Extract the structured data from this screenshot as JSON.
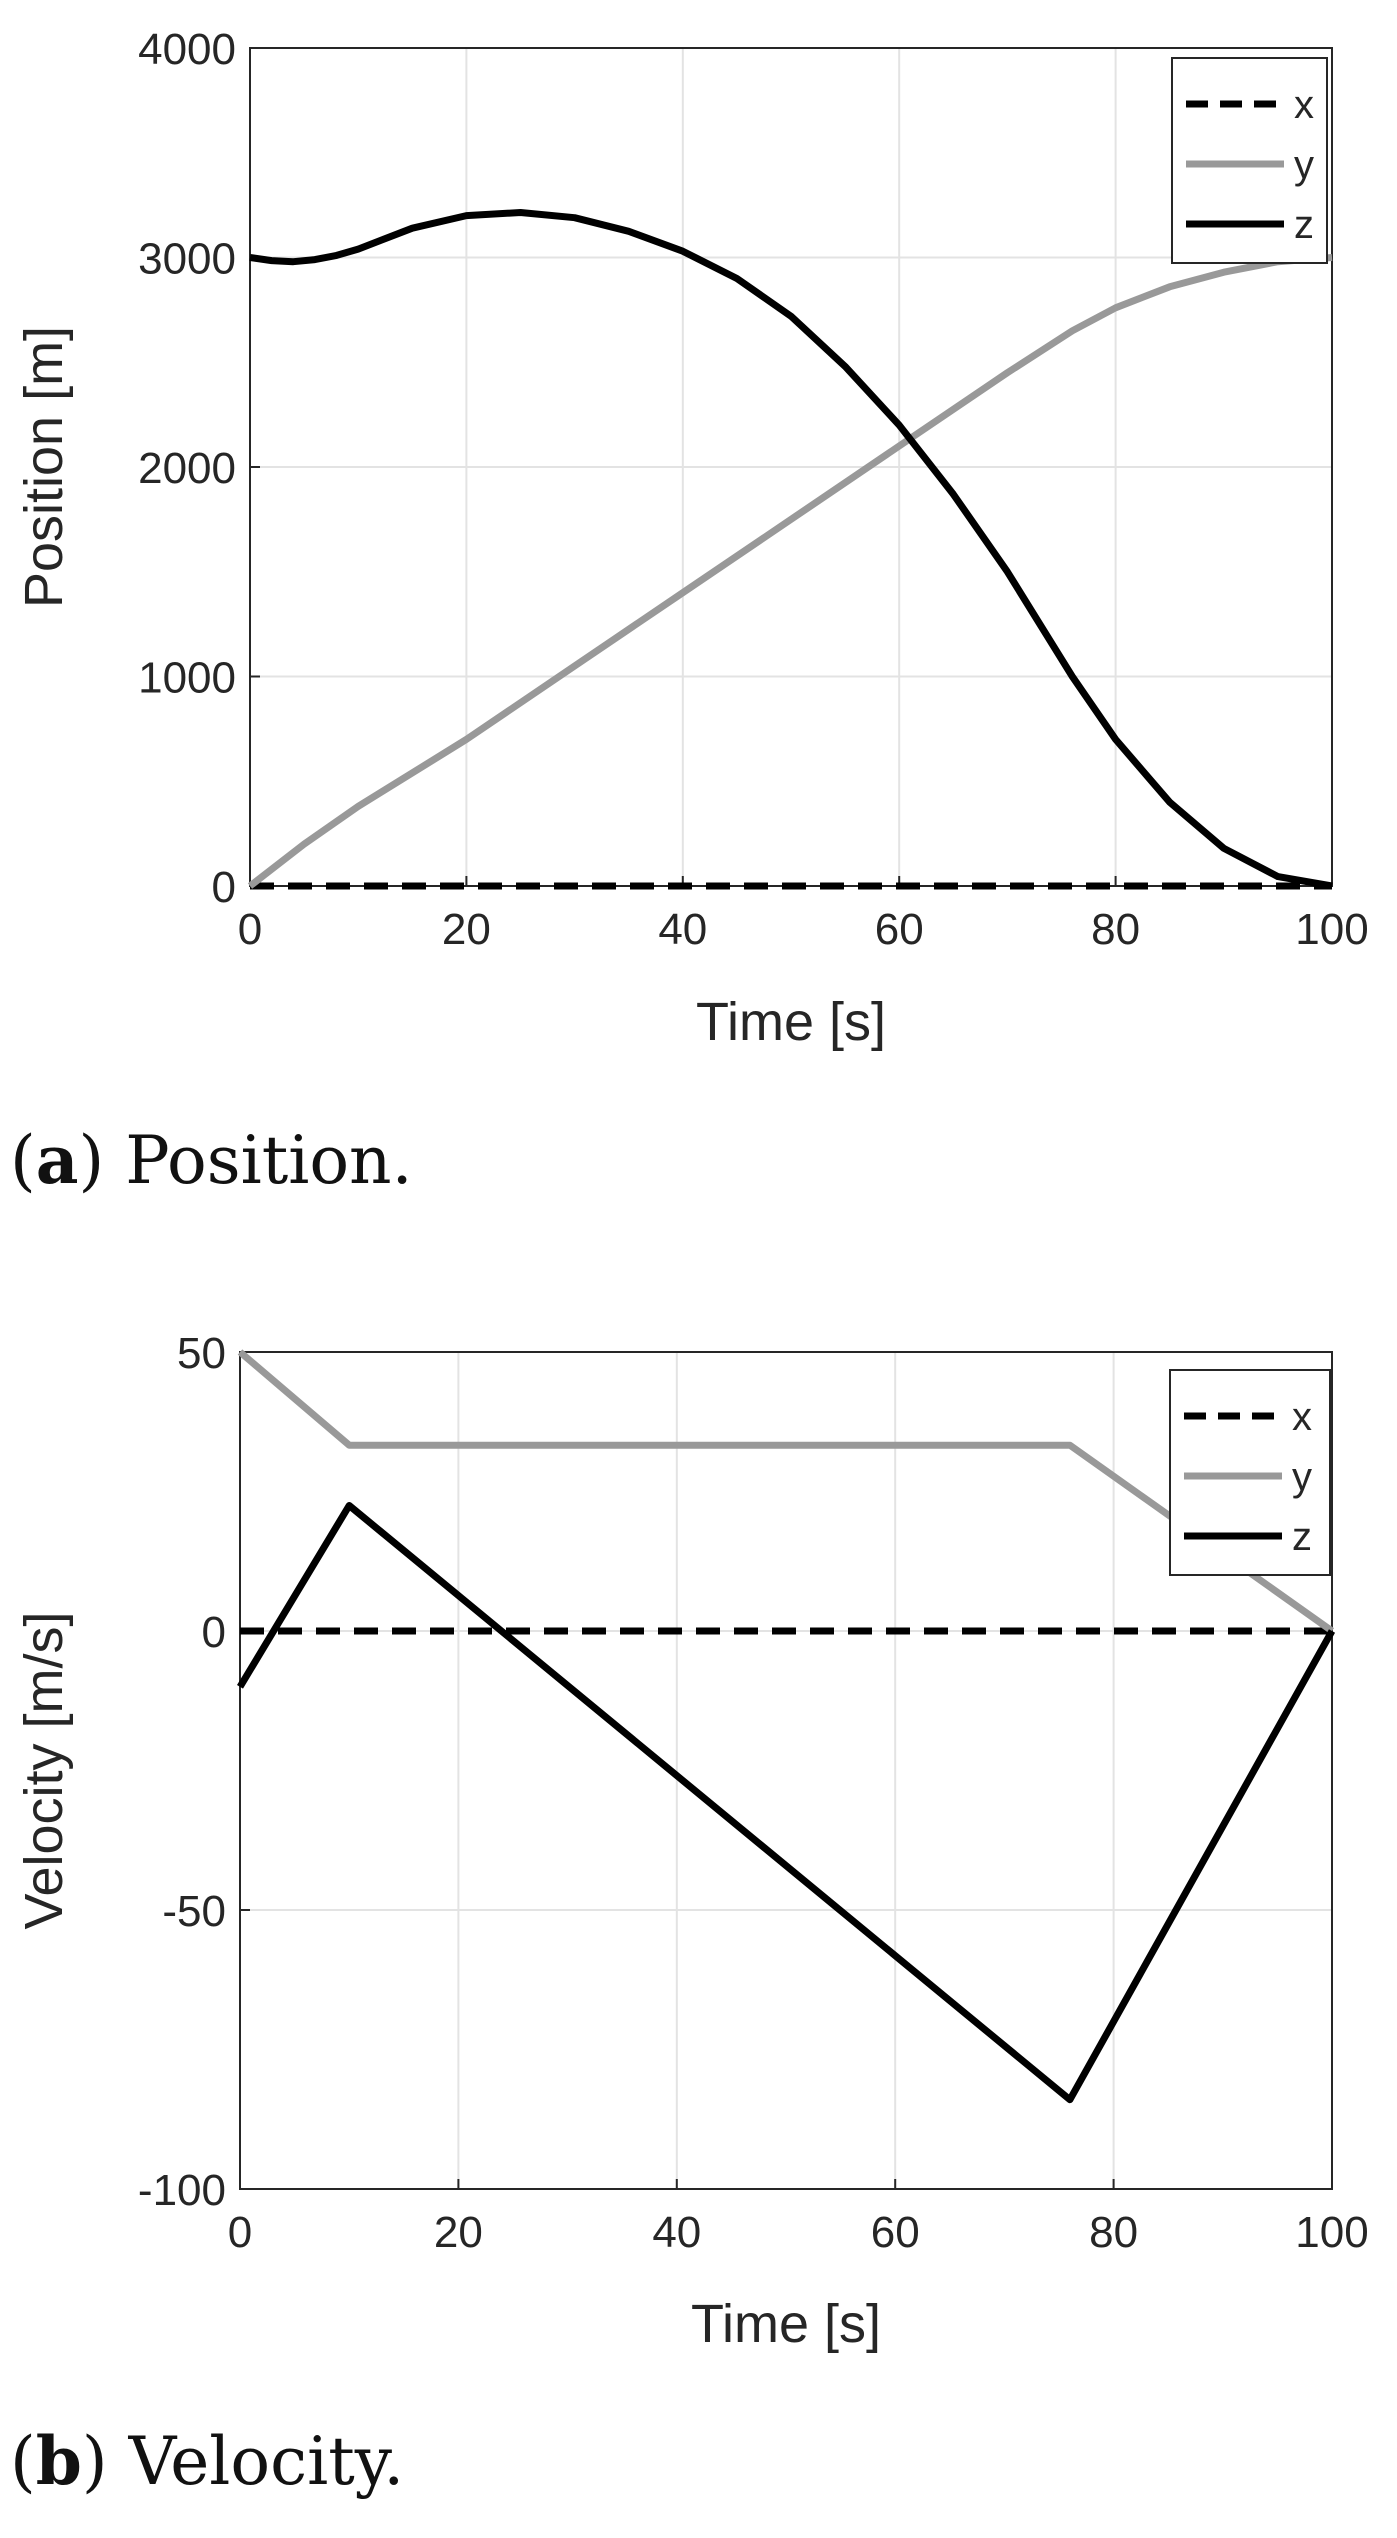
{
  "chart_data": [
    {
      "type": "line",
      "caption_letter": "a",
      "caption_text": " Position.",
      "xlabel": "Time [s]",
      "ylabel": "Position [m]",
      "xlim": [
        0,
        100
      ],
      "ylim": [
        0,
        4000
      ],
      "xticks": [
        0,
        20,
        40,
        60,
        80,
        100
      ],
      "yticks": [
        0,
        1000,
        2000,
        3000,
        4000
      ],
      "grid": true,
      "legend": {
        "location": "top-right",
        "entries": [
          "x",
          "y",
          "z"
        ]
      },
      "series": [
        {
          "name": "x",
          "color": "#000000",
          "style": "dashed",
          "x": [
            0,
            100
          ],
          "values": [
            0,
            0
          ]
        },
        {
          "name": "y",
          "color": "#999999",
          "style": "solid",
          "x": [
            0,
            5,
            10,
            20,
            30,
            40,
            50,
            60,
            70,
            76,
            80,
            85,
            90,
            95,
            100
          ],
          "values": [
            0,
            200,
            380,
            700,
            1050,
            1400,
            1750,
            2100,
            2450,
            2650,
            2760,
            2860,
            2930,
            2980,
            3000
          ]
        },
        {
          "name": "z",
          "color": "#000000",
          "style": "solid",
          "x": [
            0,
            2,
            4,
            6,
            8,
            10,
            15,
            20,
            25,
            30,
            35,
            40,
            45,
            50,
            55,
            60,
            65,
            70,
            76,
            80,
            85,
            90,
            95,
            100
          ],
          "values": [
            3000,
            2985,
            2980,
            2990,
            3010,
            3040,
            3140,
            3200,
            3215,
            3190,
            3125,
            3030,
            2900,
            2720,
            2480,
            2200,
            1870,
            1500,
            1000,
            700,
            400,
            180,
            45,
            0
          ]
        }
      ]
    },
    {
      "type": "line",
      "caption_letter": "b",
      "caption_text": " Velocity.",
      "xlabel": "Time [s]",
      "ylabel": "Velocity [m/s]",
      "xlim": [
        0,
        100
      ],
      "ylim": [
        -100,
        50
      ],
      "xticks": [
        0,
        20,
        40,
        60,
        80,
        100
      ],
      "yticks": [
        -100,
        -50,
        0,
        50
      ],
      "grid": true,
      "legend": {
        "location": "top-right",
        "entries": [
          "x",
          "y",
          "z"
        ]
      },
      "series": [
        {
          "name": "x",
          "color": "#000000",
          "style": "dashed",
          "x": [
            0,
            100
          ],
          "values": [
            0,
            0
          ]
        },
        {
          "name": "y",
          "color": "#999999",
          "style": "solid",
          "x": [
            0,
            10,
            76,
            100
          ],
          "values": [
            50,
            33.3,
            33.3,
            0
          ]
        },
        {
          "name": "z",
          "color": "#000000",
          "style": "solid",
          "x": [
            0,
            10,
            76,
            100
          ],
          "values": [
            -10,
            22.5,
            -84,
            0
          ]
        }
      ]
    }
  ]
}
